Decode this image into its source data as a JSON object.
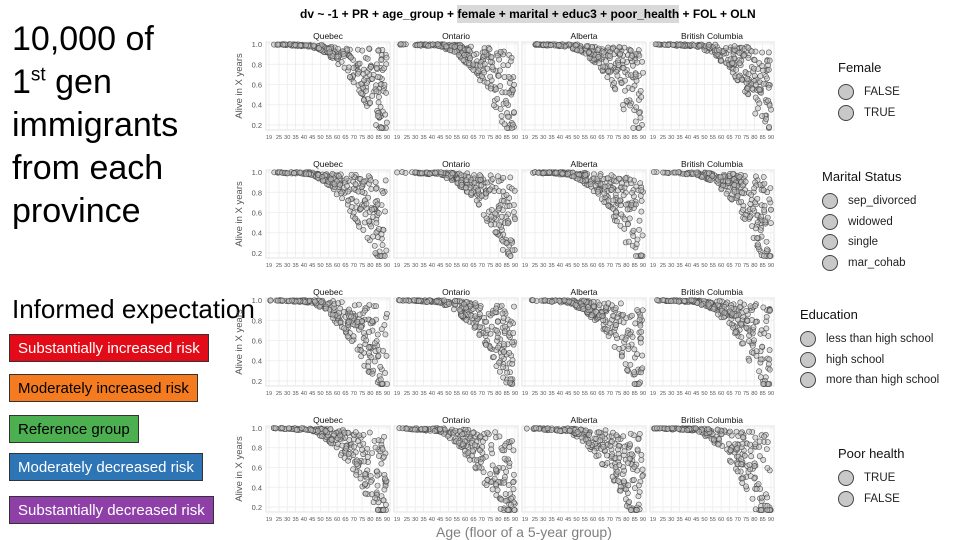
{
  "headline": {
    "line1": "10,000 of",
    "line2a": "1",
    "line2sup": "st",
    "line2b": " gen",
    "line3": "immigrants",
    "line4": "from each",
    "line5": "province"
  },
  "informed_expectation": {
    "title": "Informed expectation",
    "items": [
      {
        "label": "Substantially increased risk",
        "color": "#e30b17"
      },
      {
        "label": "Moderately increased risk",
        "color": "#f47b20"
      },
      {
        "label": "Reference group",
        "color": "#4caf50"
      },
      {
        "label": "Moderately decreased risk",
        "color": "#2e75b6"
      },
      {
        "label": "Substantially decreased risk",
        "color": "#8e3fa8"
      }
    ]
  },
  "formula": {
    "plain1": "dv ~ -1 + PR + age_group + ",
    "highlighted": "female + marital + educ3 + poor_health",
    "plain2": " + FOL + OLN"
  },
  "x_axis_title": "Age (floor of a 5-year group)",
  "legends": [
    {
      "title": "Female",
      "items": [
        "FALSE",
        "TRUE"
      ]
    },
    {
      "title": "Marital Status",
      "items": [
        "sep_divorced",
        "widowed",
        "single",
        "mar_cohab"
      ]
    },
    {
      "title": "Education",
      "items": [
        "less than high school",
        "high school",
        "more than high school"
      ]
    },
    {
      "title": "Poor health",
      "items": [
        "TRUE",
        "FALSE"
      ]
    }
  ],
  "chart_data": {
    "type": "scatter",
    "ylabel": "Alive in X years",
    "xlabel": "Age (floor of a 5-year group)",
    "facets": [
      "Quebec",
      "Ontario",
      "Alberta",
      "British Columbia"
    ],
    "x_ticks": [
      19,
      25,
      30,
      35,
      40,
      45,
      50,
      55,
      60,
      65,
      70,
      75,
      80,
      85,
      90
    ],
    "y_ticks": [
      0.2,
      0.4,
      0.6,
      0.8,
      1.0
    ],
    "ylim": [
      0.15,
      1.02
    ],
    "grid": true,
    "point_style": {
      "fill": "#bfbfbf",
      "stroke": "#4d4d4d"
    },
    "rows": [
      {
        "variable": "Female",
        "panels": [
          {
            "facet": "Quebec",
            "profile": [
              [
                19,
                0.998
              ],
              [
                45,
                0.985
              ],
              [
                55,
                0.94
              ],
              [
                65,
                0.85
              ],
              [
                75,
                0.72
              ],
              [
                85,
                0.55
              ],
              [
                90,
                0.42
              ]
            ]
          },
          {
            "facet": "Ontario",
            "profile": [
              [
                19,
                0.998
              ],
              [
                45,
                0.985
              ],
              [
                55,
                0.95
              ],
              [
                65,
                0.86
              ],
              [
                75,
                0.72
              ],
              [
                85,
                0.54
              ],
              [
                90,
                0.45
              ]
            ]
          },
          {
            "facet": "Alberta",
            "profile": [
              [
                19,
                0.998
              ],
              [
                45,
                0.985
              ],
              [
                55,
                0.95
              ],
              [
                65,
                0.87
              ],
              [
                75,
                0.73
              ],
              [
                85,
                0.52
              ],
              [
                90,
                0.4
              ]
            ]
          },
          {
            "facet": "British Columbia",
            "profile": [
              [
                19,
                0.998
              ],
              [
                45,
                0.985
              ],
              [
                55,
                0.95
              ],
              [
                65,
                0.87
              ],
              [
                75,
                0.74
              ],
              [
                85,
                0.55
              ],
              [
                90,
                0.42
              ]
            ]
          }
        ]
      },
      {
        "variable": "Marital Status",
        "panels": [
          {
            "facet": "Quebec",
            "profile": [
              [
                19,
                0.998
              ],
              [
                45,
                0.985
              ],
              [
                55,
                0.93
              ],
              [
                65,
                0.82
              ],
              [
                75,
                0.68
              ],
              [
                85,
                0.52
              ],
              [
                90,
                0.4
              ]
            ]
          },
          {
            "facet": "Ontario",
            "profile": [
              [
                19,
                0.998
              ],
              [
                45,
                0.985
              ],
              [
                55,
                0.94
              ],
              [
                65,
                0.86
              ],
              [
                75,
                0.72
              ],
              [
                85,
                0.55
              ],
              [
                90,
                0.45
              ]
            ]
          },
          {
            "facet": "Alberta",
            "profile": [
              [
                19,
                0.998
              ],
              [
                45,
                0.985
              ],
              [
                55,
                0.94
              ],
              [
                65,
                0.86
              ],
              [
                75,
                0.72
              ],
              [
                85,
                0.52
              ],
              [
                90,
                0.4
              ]
            ]
          },
          {
            "facet": "British Columbia",
            "profile": [
              [
                19,
                0.998
              ],
              [
                45,
                0.985
              ],
              [
                55,
                0.95
              ],
              [
                65,
                0.87
              ],
              [
                75,
                0.74
              ],
              [
                85,
                0.55
              ],
              [
                90,
                0.42
              ]
            ]
          }
        ]
      },
      {
        "variable": "Education",
        "panels": [
          {
            "facet": "Quebec",
            "profile": [
              [
                19,
                0.998
              ],
              [
                45,
                0.985
              ],
              [
                55,
                0.93
              ],
              [
                65,
                0.82
              ],
              [
                75,
                0.68
              ],
              [
                85,
                0.5
              ],
              [
                90,
                0.4
              ]
            ]
          },
          {
            "facet": "Ontario",
            "profile": [
              [
                19,
                0.998
              ],
              [
                45,
                0.985
              ],
              [
                55,
                0.94
              ],
              [
                65,
                0.85
              ],
              [
                75,
                0.72
              ],
              [
                85,
                0.55
              ],
              [
                90,
                0.45
              ]
            ]
          },
          {
            "facet": "Alberta",
            "profile": [
              [
                19,
                0.998
              ],
              [
                45,
                0.985
              ],
              [
                55,
                0.94
              ],
              [
                65,
                0.86
              ],
              [
                75,
                0.72
              ],
              [
                85,
                0.52
              ],
              [
                90,
                0.4
              ]
            ]
          },
          {
            "facet": "British Columbia",
            "profile": [
              [
                19,
                0.998
              ],
              [
                45,
                0.985
              ],
              [
                55,
                0.95
              ],
              [
                65,
                0.86
              ],
              [
                75,
                0.72
              ],
              [
                85,
                0.52
              ],
              [
                90,
                0.4
              ]
            ]
          }
        ]
      },
      {
        "variable": "Poor health",
        "panels": [
          {
            "facet": "Quebec",
            "profile": [
              [
                19,
                0.998
              ],
              [
                45,
                0.985
              ],
              [
                55,
                0.93
              ],
              [
                65,
                0.82
              ],
              [
                75,
                0.68
              ],
              [
                85,
                0.5
              ],
              [
                90,
                0.38
              ]
            ]
          },
          {
            "facet": "Ontario",
            "profile": [
              [
                19,
                0.998
              ],
              [
                45,
                0.98
              ],
              [
                55,
                0.92
              ],
              [
                65,
                0.8
              ],
              [
                75,
                0.65
              ],
              [
                85,
                0.48
              ],
              [
                90,
                0.38
              ]
            ]
          },
          {
            "facet": "Alberta",
            "profile": [
              [
                19,
                0.998
              ],
              [
                45,
                0.98
              ],
              [
                55,
                0.92
              ],
              [
                65,
                0.8
              ],
              [
                75,
                0.66
              ],
              [
                85,
                0.48
              ],
              [
                90,
                0.38
              ]
            ]
          },
          {
            "facet": "British Columbia",
            "profile": [
              [
                19,
                0.998
              ],
              [
                45,
                0.985
              ],
              [
                55,
                0.93
              ],
              [
                65,
                0.82
              ],
              [
                75,
                0.67
              ],
              [
                85,
                0.48
              ],
              [
                90,
                0.36
              ]
            ]
          }
        ]
      }
    ]
  }
}
